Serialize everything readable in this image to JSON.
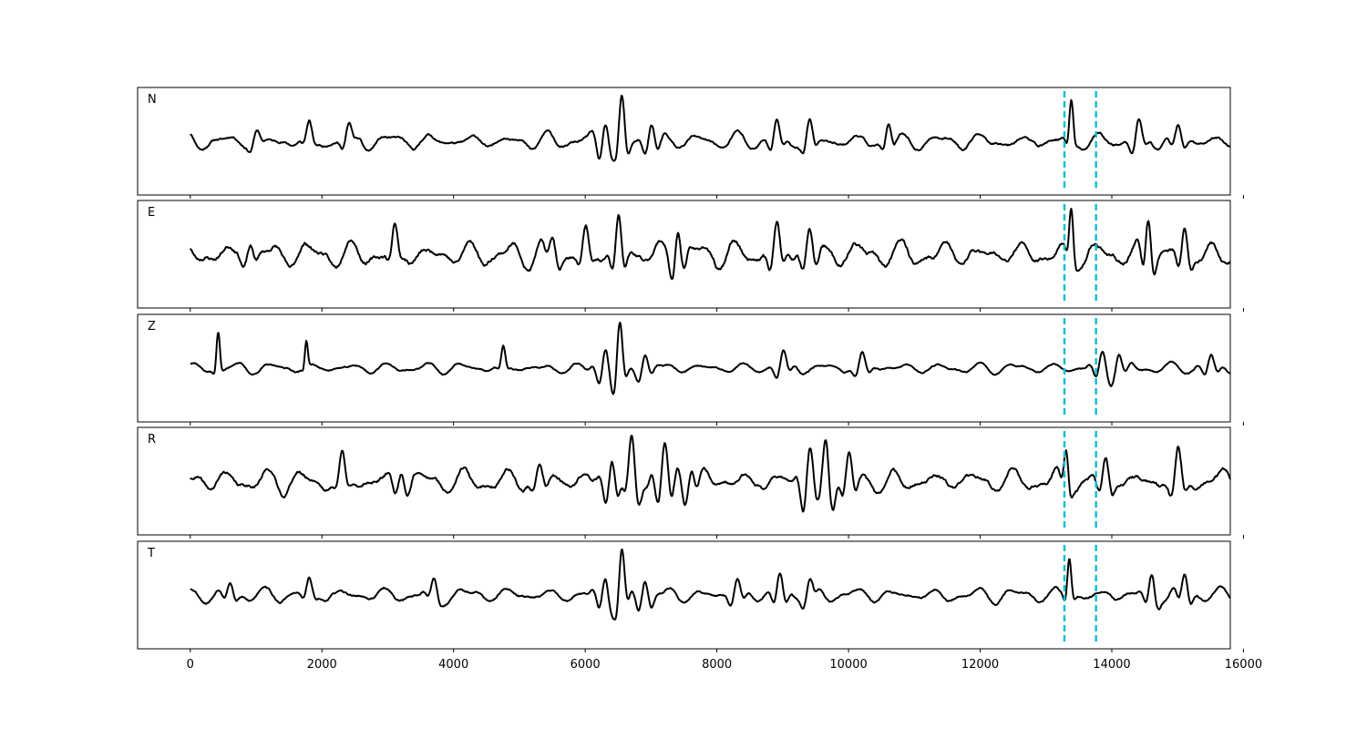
{
  "chart_data": {
    "type": "line",
    "xlim": [
      -800,
      15800
    ],
    "x_ticks": [
      0,
      2000,
      4000,
      6000,
      8000,
      10000,
      12000,
      14000,
      16000
    ],
    "x_tick_labels": [
      "0",
      "2000",
      "4000",
      "6000",
      "8000",
      "10000",
      "12000",
      "14000",
      "16000"
    ],
    "grid": false,
    "legend": "none",
    "line_color": "#000000",
    "marker_color": "#17becf",
    "markers": [
      13280,
      13760
    ],
    "x_start": 0,
    "x_end": 15800,
    "panels": [
      {
        "label": "N",
        "baseline": 0,
        "noise": 0.18,
        "seed": 11,
        "events": [
          [
            1000,
            0.25,
            120
          ],
          [
            1800,
            0.35,
            100
          ],
          [
            2400,
            0.3,
            120
          ],
          [
            6300,
            0.6,
            150
          ],
          [
            6550,
            1.0,
            110
          ],
          [
            7000,
            0.45,
            150
          ],
          [
            8900,
            0.45,
            130
          ],
          [
            9400,
            0.45,
            120
          ],
          [
            10600,
            0.45,
            100
          ],
          [
            13380,
            1.0,
            60
          ],
          [
            14400,
            0.4,
            150
          ],
          [
            15000,
            0.35,
            150
          ]
        ]
      },
      {
        "label": "E",
        "baseline": 0,
        "noise": 0.26,
        "seed": 23,
        "events": [
          [
            900,
            0.25,
            150
          ],
          [
            3100,
            0.5,
            100
          ],
          [
            5500,
            0.4,
            150
          ],
          [
            6000,
            0.45,
            140
          ],
          [
            6500,
            0.75,
            120
          ],
          [
            7400,
            0.7,
            120
          ],
          [
            8900,
            0.55,
            150
          ],
          [
            9400,
            0.5,
            150
          ],
          [
            13380,
            1.0,
            60
          ],
          [
            14550,
            0.9,
            100
          ],
          [
            15100,
            0.6,
            120
          ]
        ]
      },
      {
        "label": "Z",
        "baseline": 0,
        "noise": 0.12,
        "seed": 37,
        "events": [
          [
            420,
            1.0,
            50
          ],
          [
            1760,
            0.7,
            40
          ],
          [
            4750,
            0.5,
            60
          ],
          [
            6300,
            0.55,
            150
          ],
          [
            6520,
            1.0,
            100
          ],
          [
            6900,
            0.35,
            150
          ],
          [
            9000,
            0.35,
            150
          ],
          [
            10200,
            0.3,
            150
          ],
          [
            13850,
            0.4,
            150
          ],
          [
            14100,
            0.35,
            150
          ],
          [
            15500,
            0.3,
            150
          ]
        ]
      },
      {
        "label": "R",
        "baseline": 0,
        "noise": 0.26,
        "seed": 41,
        "events": [
          [
            2300,
            0.5,
            100
          ],
          [
            3200,
            0.4,
            150
          ],
          [
            5300,
            0.35,
            150
          ],
          [
            6400,
            0.7,
            150
          ],
          [
            6700,
            0.85,
            150
          ],
          [
            7200,
            0.85,
            180
          ],
          [
            7600,
            0.45,
            150
          ],
          [
            9400,
            0.9,
            150
          ],
          [
            9650,
            0.85,
            150
          ],
          [
            10000,
            0.6,
            140
          ],
          [
            13300,
            0.85,
            70
          ],
          [
            13900,
            0.5,
            150
          ],
          [
            15000,
            0.6,
            150
          ]
        ]
      },
      {
        "label": "T",
        "baseline": 0,
        "noise": 0.17,
        "seed": 53,
        "events": [
          [
            600,
            0.3,
            120
          ],
          [
            1800,
            0.35,
            100
          ],
          [
            3700,
            0.3,
            120
          ],
          [
            6300,
            0.55,
            150
          ],
          [
            6550,
            1.0,
            100
          ],
          [
            6900,
            0.45,
            150
          ],
          [
            8300,
            0.35,
            150
          ],
          [
            8950,
            0.5,
            130
          ],
          [
            9400,
            0.35,
            130
          ],
          [
            13350,
            1.0,
            60
          ],
          [
            14600,
            0.5,
            120
          ],
          [
            15100,
            0.5,
            120
          ]
        ]
      }
    ]
  }
}
